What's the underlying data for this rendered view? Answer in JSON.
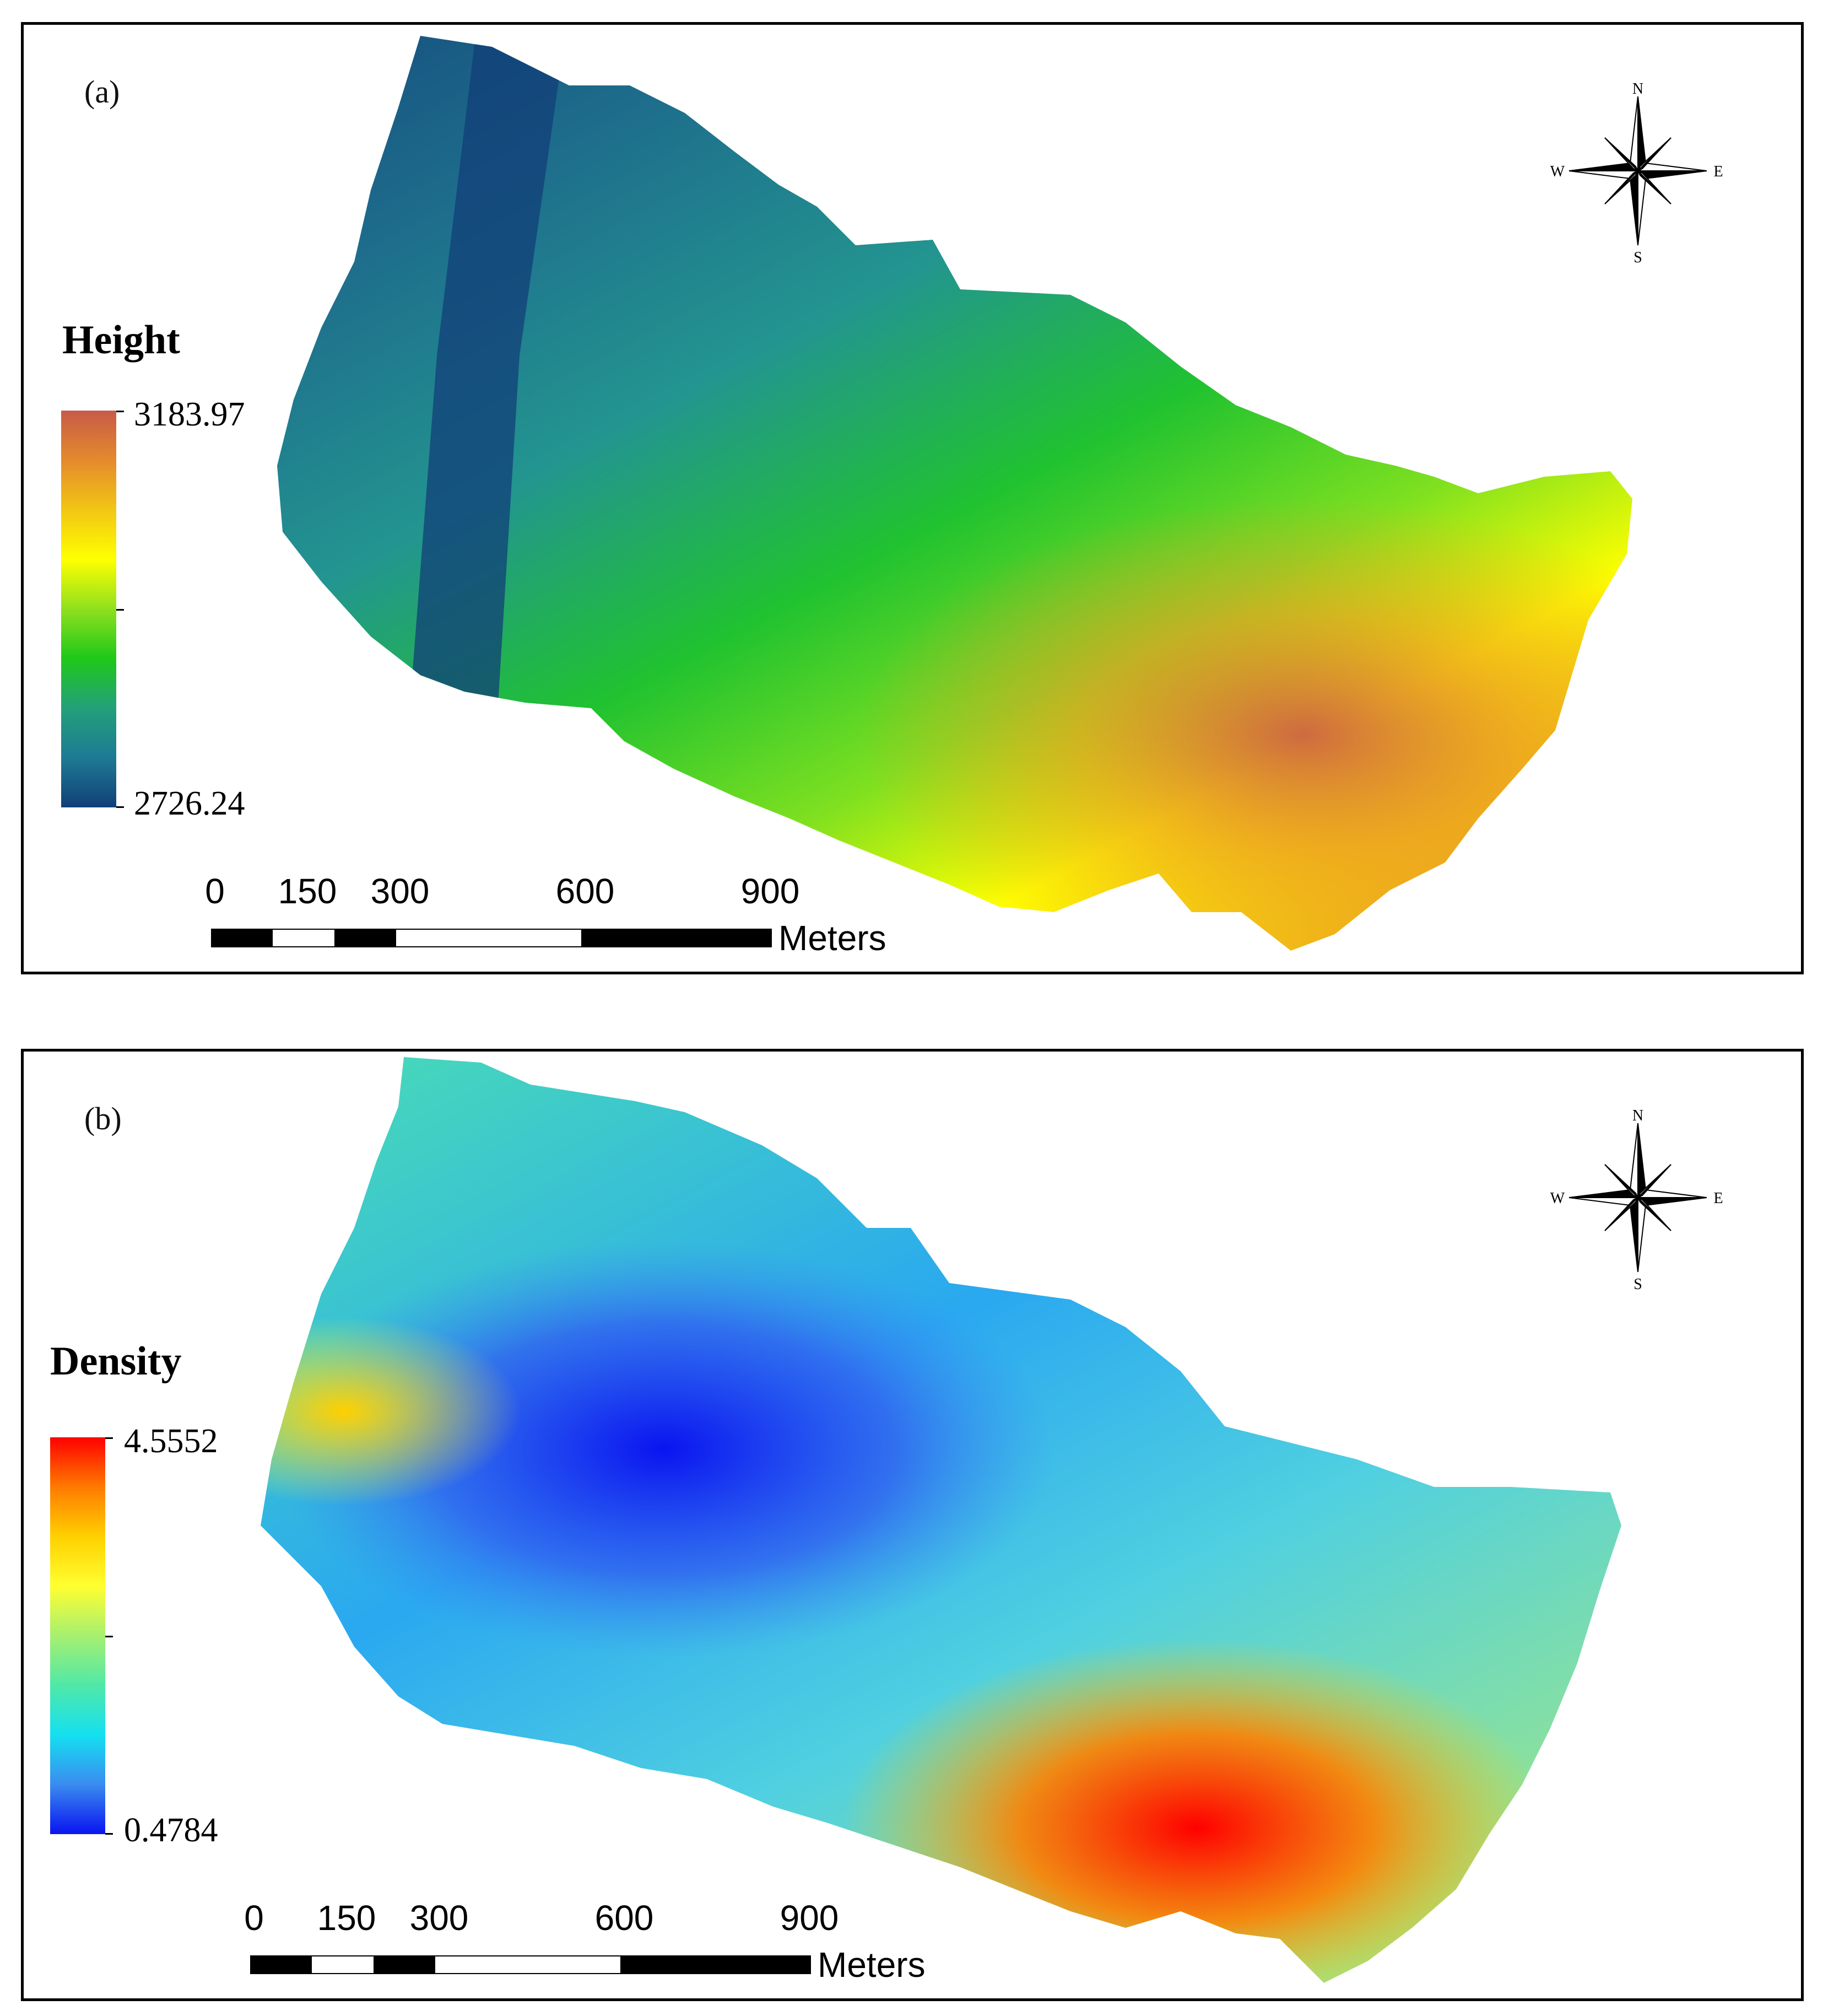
{
  "panels": [
    {
      "id": "a",
      "label": "(a)",
      "legend": {
        "title": "Height",
        "max_label": "3183.97",
        "min_label": "2726.24",
        "ramp_colors": [
          "#c85a48",
          "#e48a2c",
          "#f2c614",
          "#ffff00",
          "#8fe01e",
          "#1fc81a",
          "#23a07a",
          "#1e7a94",
          "#123f78"
        ]
      },
      "scale_bar": {
        "ticks": [
          "0",
          "150",
          "300",
          "600",
          "900"
        ],
        "unit": "Meters"
      },
      "compass": {
        "N": "N",
        "S": "S",
        "E": "E",
        "W": "W"
      }
    },
    {
      "id": "b",
      "label": "(b)",
      "legend": {
        "title": "Density",
        "max_label": "4.5552",
        "min_label": "0.4784",
        "ramp_colors": [
          "#ff0000",
          "#ff7a00",
          "#ffd000",
          "#ffff30",
          "#a6f070",
          "#50e8a8",
          "#14e0f0",
          "#3a8cf0",
          "#0a14f0"
        ]
      },
      "scale_bar": {
        "ticks": [
          "0",
          "150",
          "300",
          "600",
          "900"
        ],
        "unit": "Meters"
      },
      "compass": {
        "N": "N",
        "S": "S",
        "E": "E",
        "W": "W"
      }
    }
  ]
}
